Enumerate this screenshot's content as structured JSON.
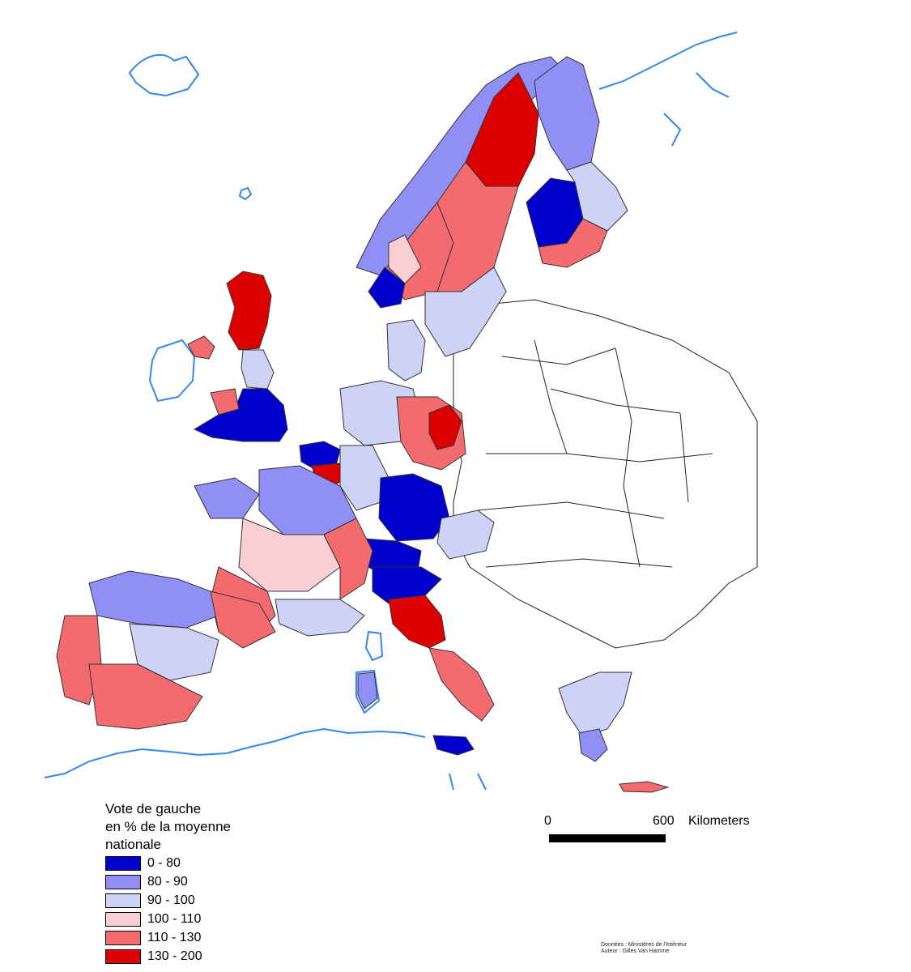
{
  "map": {
    "colors": {
      "water_lines": "#3388ee",
      "borders": "#222222",
      "unshaded_land": "#ffffff"
    },
    "classes": [
      {
        "label": "0 - 80",
        "color": "#0000cc"
      },
      {
        "label": "80 - 90",
        "color": "#8f8ff5"
      },
      {
        "label": "90 - 100",
        "color": "#cdd2f7"
      },
      {
        "label": "100 - 110",
        "color": "#f9cfd4"
      },
      {
        "label": "110 - 130",
        "color": "#f46b6f"
      },
      {
        "label": "130 - 200",
        "color": "#dc0000"
      }
    ]
  },
  "legend": {
    "title_line1": "Vote de gauche",
    "title_line2": "en % de la moyenne",
    "title_line3": "nationale"
  },
  "scale": {
    "zero": "0",
    "max": "600",
    "unit": "Kilometers"
  },
  "credits": {
    "line1": "Données : Ministères de l'Intérieur",
    "line2": "Auteur : Gilles Van Hamme"
  }
}
